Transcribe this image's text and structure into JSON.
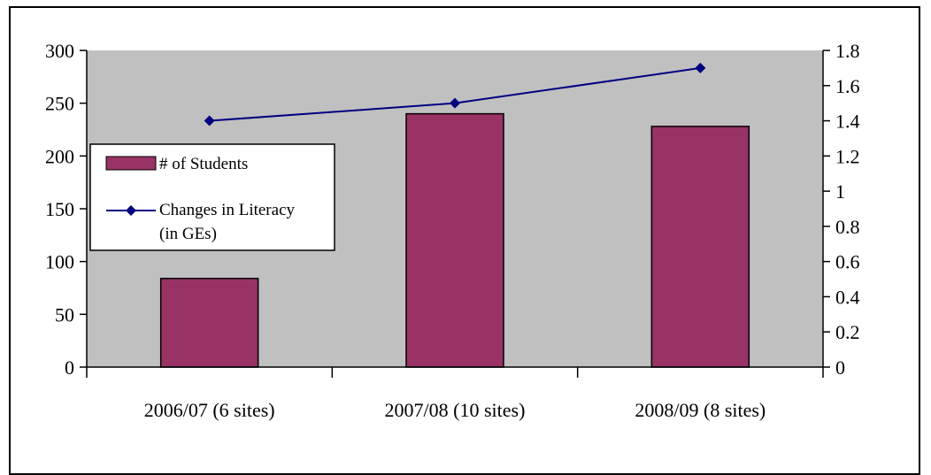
{
  "chart_data": {
    "type": "bar",
    "categories": [
      "2006/07 (6 sites)",
      "2007/08 (10 sites)",
      "2008/09 (8 sites)"
    ],
    "series": [
      {
        "name": "# of Students",
        "type": "bar",
        "axis": "left",
        "values": [
          84,
          240,
          228
        ]
      },
      {
        "name": "Changes in Literacy (in GEs)",
        "type": "line",
        "axis": "right",
        "values": [
          1.4,
          1.5,
          1.7
        ]
      }
    ],
    "y_left": {
      "lim": [
        0,
        300
      ],
      "ticks": [
        0,
        50,
        100,
        150,
        200,
        250,
        300
      ],
      "tick_labels": [
        "0",
        "50",
        "100",
        "150",
        "200",
        "250",
        "300"
      ]
    },
    "y_right": {
      "lim": [
        0,
        1.8
      ],
      "ticks": [
        0,
        0.2,
        0.4,
        0.6,
        0.8,
        1.0,
        1.2,
        1.4,
        1.6,
        1.8
      ],
      "tick_labels": [
        "0",
        "0.2",
        "0.4",
        "0.6",
        "0.8",
        "1",
        "1.2",
        "1.4",
        "1.6",
        "1.8"
      ]
    },
    "legend": {
      "placement": "left-middle",
      "bar_label": "# of Students",
      "line_label_lines": [
        "Changes in Literacy",
        "(in GEs)"
      ]
    },
    "colors": {
      "plot_bg": "#c0c0c0",
      "bar": "#993366",
      "line": "#000080"
    },
    "grid": false
  }
}
